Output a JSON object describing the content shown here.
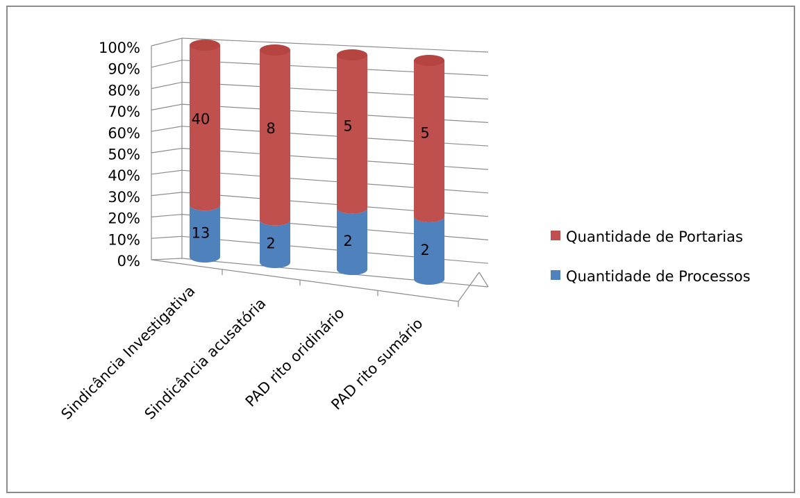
{
  "chart_data": {
    "type": "bar",
    "stacked": "percent",
    "style": "3d-cylinder",
    "categories": [
      "Sindicância Investigativa",
      "Sindicância acusatória",
      "PAD rito oridinário",
      "PAD rito sumário"
    ],
    "series": [
      {
        "name": "Quantidade de Processos",
        "values": [
          13,
          2,
          2,
          2
        ],
        "color": "#4f81bd"
      },
      {
        "name": "Quantidade de Portarias",
        "values": [
          40,
          8,
          5,
          5
        ],
        "color": "#c0504d"
      }
    ],
    "yticks": [
      "0%",
      "10%",
      "20%",
      "30%",
      "40%",
      "50%",
      "60%",
      "70%",
      "80%",
      "90%",
      "100%"
    ],
    "ylim": [
      0,
      100
    ],
    "grid": true,
    "legend": {
      "position": "right",
      "entries": [
        {
          "label": "Quantidade de Portarias",
          "color": "#c0504d"
        },
        {
          "label": "Quantidade de Processos",
          "color": "#4f81bd"
        }
      ]
    }
  }
}
